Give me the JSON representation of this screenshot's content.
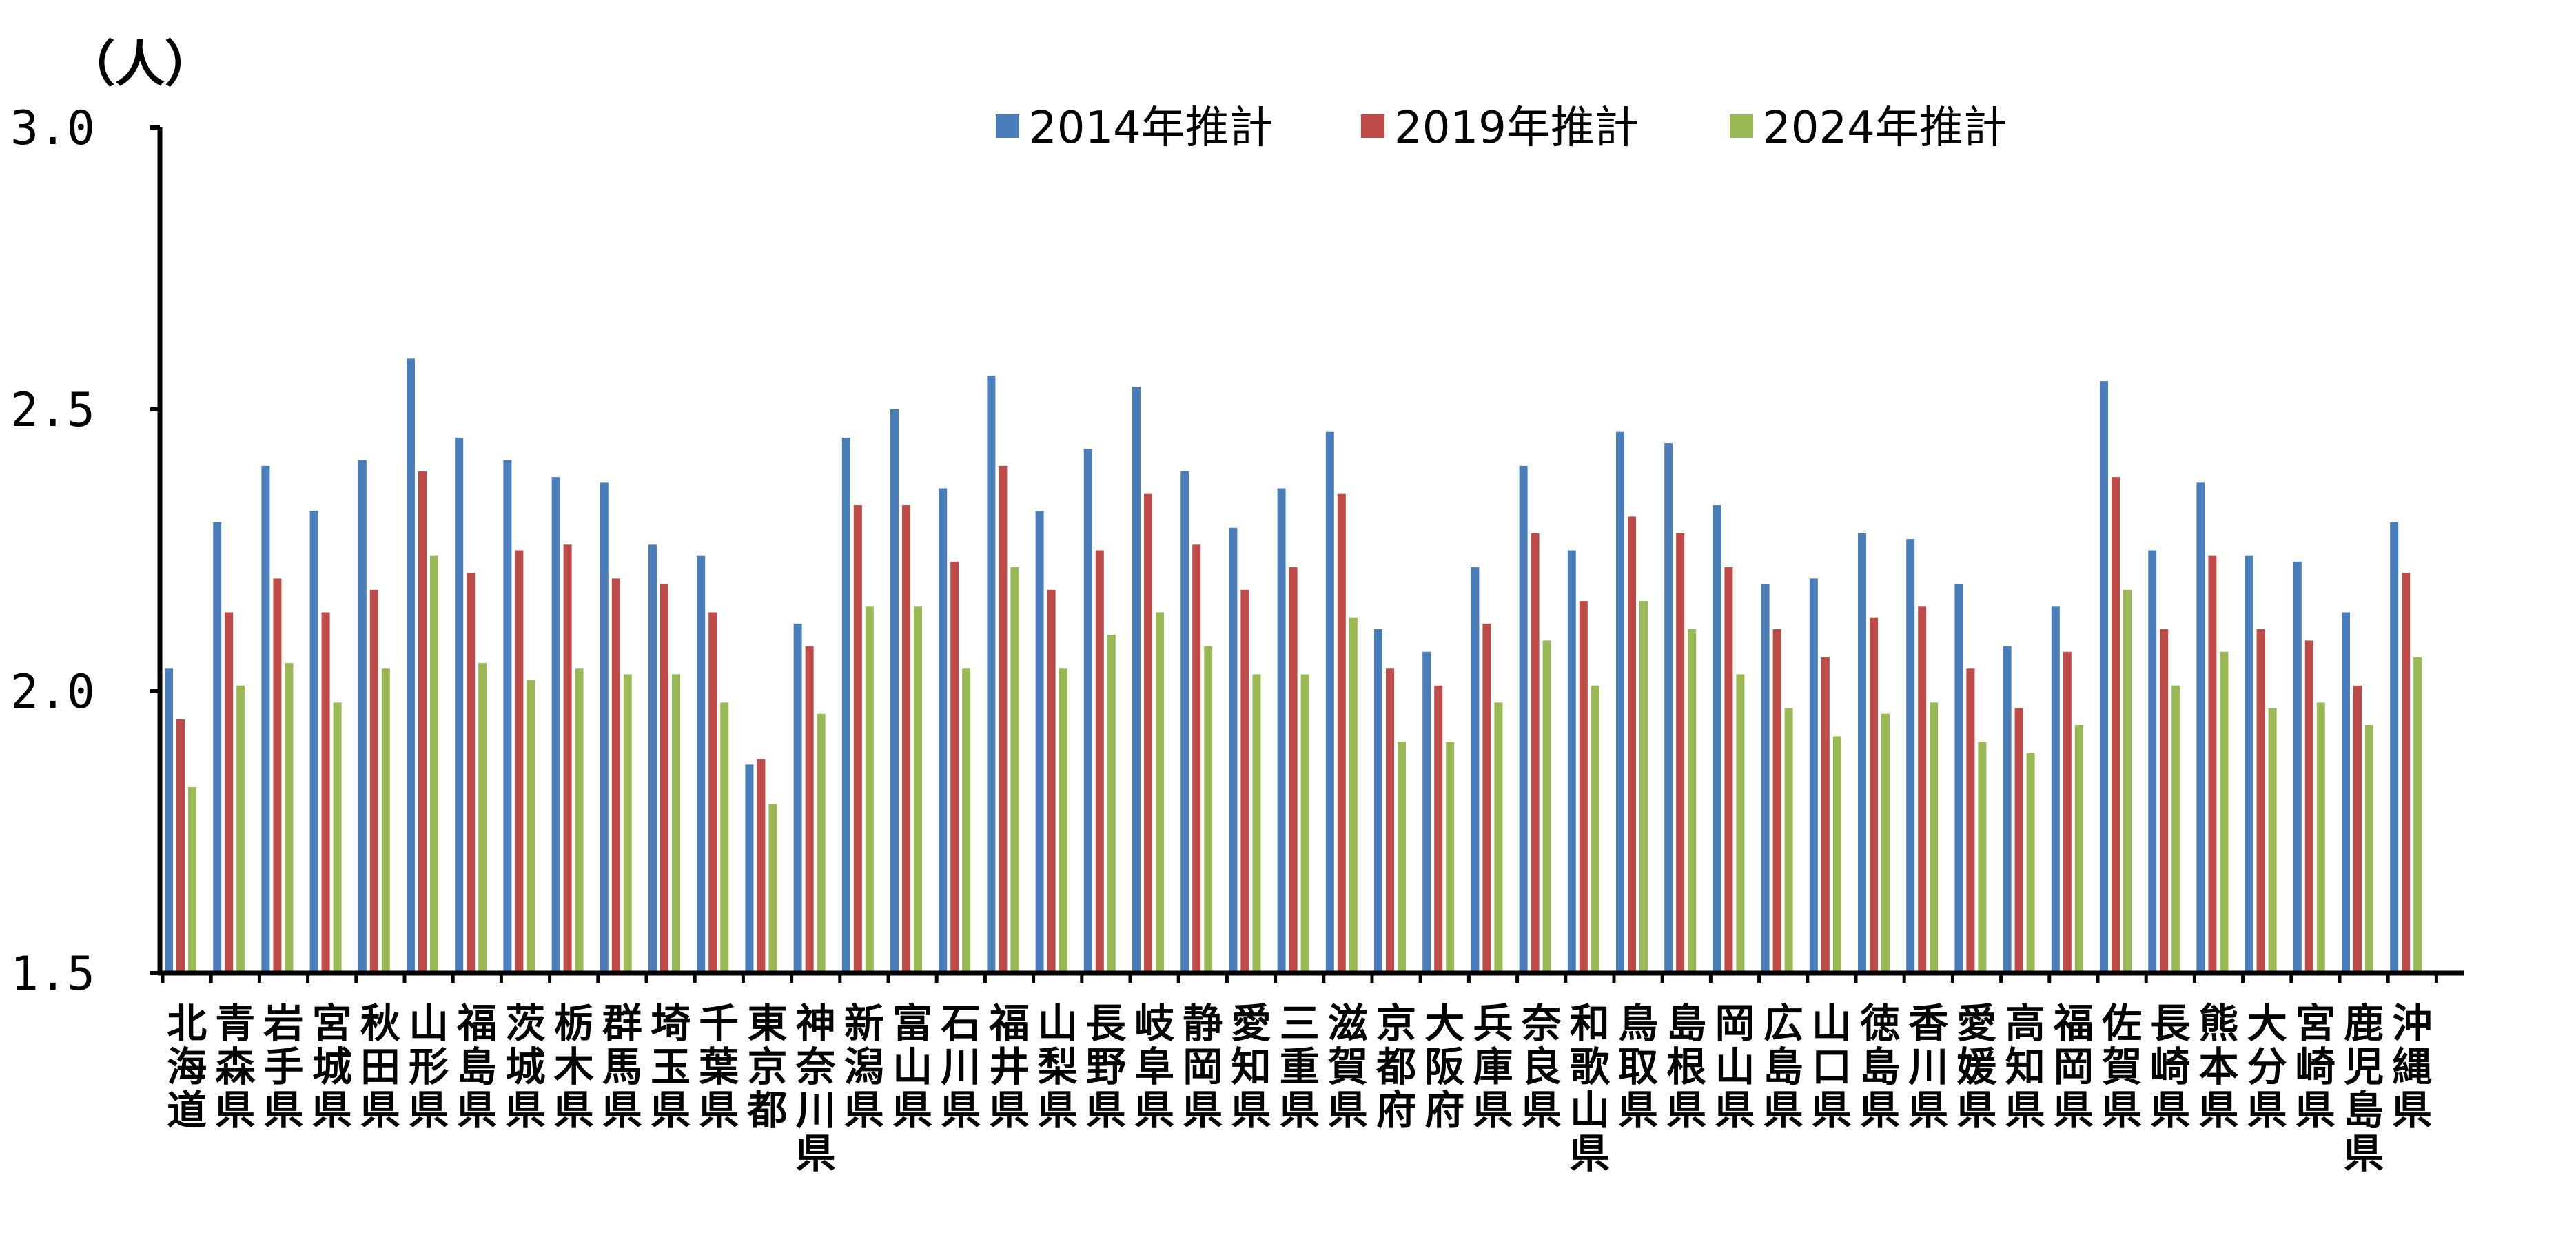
{
  "chart_data": {
    "type": "bar",
    "unit_label": "（人）",
    "ylim": [
      1.5,
      3.0
    ],
    "yticks": [
      "1.5",
      "2.0",
      "2.5",
      "3.0"
    ],
    "legend_position": "top-center",
    "grid": false,
    "categories": [
      "北海道",
      "青森県",
      "岩手県",
      "宮城県",
      "秋田県",
      "山形県",
      "福島県",
      "茨城県",
      "栃木県",
      "群馬県",
      "埼玉県",
      "千葉県",
      "東京都",
      "神奈川県",
      "新潟県",
      "富山県",
      "石川県",
      "福井県",
      "山梨県",
      "長野県",
      "岐阜県",
      "静岡県",
      "愛知県",
      "三重県",
      "滋賀県",
      "京都府",
      "大阪府",
      "兵庫県",
      "奈良県",
      "和歌山県",
      "鳥取県",
      "島根県",
      "岡山県",
      "広島県",
      "山口県",
      "徳島県",
      "香川県",
      "愛媛県",
      "高知県",
      "福岡県",
      "佐賀県",
      "長崎県",
      "熊本県",
      "大分県",
      "宮崎県",
      "鹿児島県",
      "沖縄県"
    ],
    "series": [
      {
        "name": "2014年推計",
        "color": "#4a7ebb",
        "values": [
          2.04,
          2.3,
          2.4,
          2.32,
          2.41,
          2.59,
          2.45,
          2.41,
          2.38,
          2.37,
          2.26,
          2.24,
          1.87,
          2.12,
          2.45,
          2.5,
          2.36,
          2.56,
          2.32,
          2.43,
          2.54,
          2.39,
          2.29,
          2.36,
          2.46,
          2.11,
          2.07,
          2.22,
          2.4,
          2.25,
          2.46,
          2.44,
          2.33,
          2.19,
          2.2,
          2.28,
          2.27,
          2.19,
          2.08,
          2.15,
          2.55,
          2.25,
          2.37,
          2.24,
          2.23,
          2.14,
          2.3
        ]
      },
      {
        "name": "2019年推計",
        "color": "#be4b48",
        "values": [
          1.95,
          2.14,
          2.2,
          2.14,
          2.18,
          2.39,
          2.21,
          2.25,
          2.26,
          2.2,
          2.19,
          2.14,
          1.88,
          2.08,
          2.33,
          2.33,
          2.23,
          2.4,
          2.18,
          2.25,
          2.35,
          2.26,
          2.18,
          2.22,
          2.35,
          2.04,
          2.01,
          2.12,
          2.28,
          2.16,
          2.31,
          2.28,
          2.22,
          2.11,
          2.06,
          2.13,
          2.15,
          2.04,
          1.97,
          2.07,
          2.38,
          2.11,
          2.24,
          2.11,
          2.09,
          2.01,
          2.21
        ]
      },
      {
        "name": "2024年推計",
        "color": "#98b954",
        "values": [
          1.83,
          2.01,
          2.05,
          1.98,
          2.04,
          2.24,
          2.05,
          2.02,
          2.04,
          2.03,
          2.03,
          1.98,
          1.8,
          1.96,
          2.15,
          2.15,
          2.04,
          2.22,
          2.04,
          2.1,
          2.14,
          2.08,
          2.03,
          2.03,
          2.13,
          1.91,
          1.91,
          1.98,
          2.09,
          2.01,
          2.16,
          2.11,
          2.03,
          1.97,
          1.92,
          1.96,
          1.98,
          1.91,
          1.89,
          1.94,
          2.18,
          2.01,
          2.07,
          1.97,
          1.98,
          1.94,
          2.06
        ]
      }
    ]
  }
}
